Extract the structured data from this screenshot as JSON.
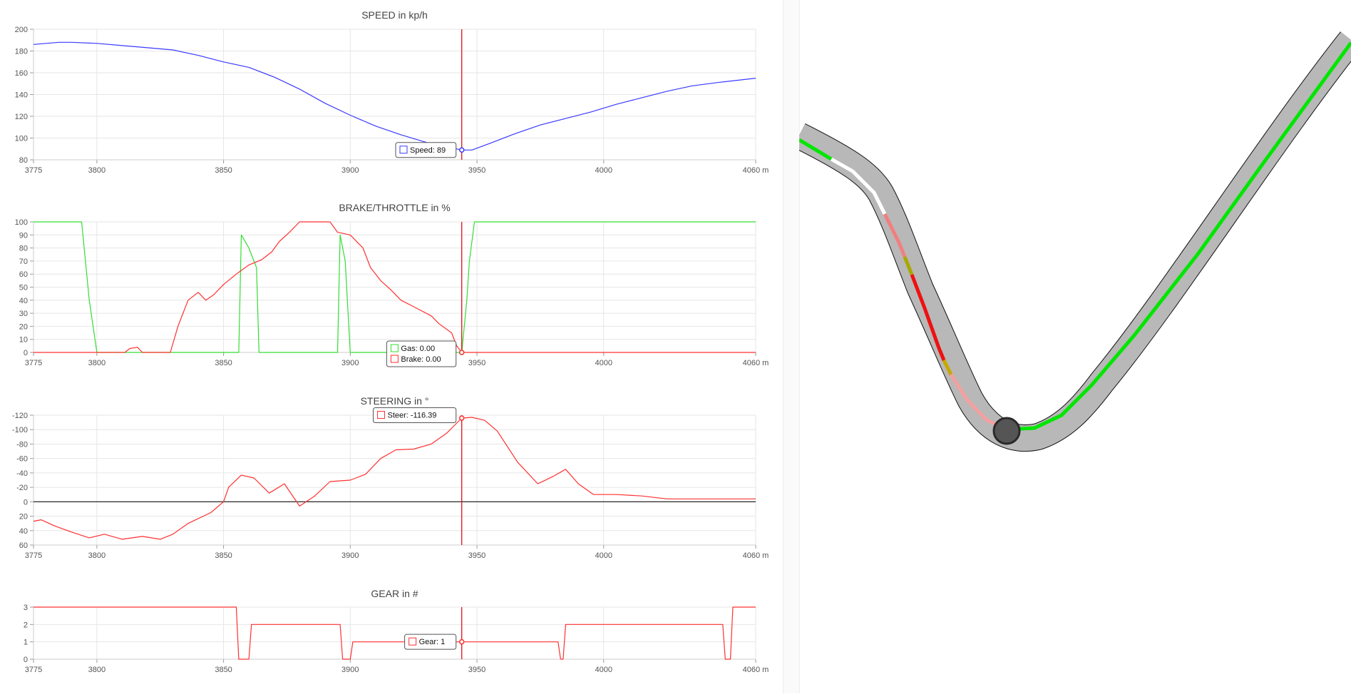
{
  "colors": {
    "speed": "#3a3aff",
    "gas": "#33dd33",
    "brake": "#ff3030",
    "cursor": "#dd0000",
    "track": "#b8b8b8",
    "line_fast": "#00e600",
    "line_brake": "#ee1111"
  },
  "cursor_x": 3944,
  "charts": [
    {
      "title": "SPEED in kp/h",
      "type": "line",
      "x_range": [
        3775,
        4060
      ],
      "x_ticks": [
        "3775",
        "3800",
        "3850",
        "3900",
        "3950",
        "4000",
        "4060 m"
      ],
      "y_range": [
        80,
        200
      ],
      "y_reversed": false,
      "y_ticks": [
        "200",
        "180",
        "160",
        "140",
        "120",
        "100",
        "80"
      ],
      "zero_line": false,
      "series": [
        {
          "name": "Speed",
          "color": "#3a3aff",
          "step": false,
          "x": [
            3775,
            3785,
            3790,
            3800,
            3810,
            3820,
            3830,
            3840,
            3850,
            3860,
            3870,
            3880,
            3890,
            3900,
            3910,
            3920,
            3930,
            3940,
            3944,
            3948,
            3955,
            3965,
            3975,
            3985,
            3995,
            4005,
            4015,
            4025,
            4035,
            4045,
            4060
          ],
          "y": [
            186,
            188,
            188,
            187,
            185,
            183,
            181,
            176,
            170,
            165,
            156,
            145,
            132,
            121,
            111,
            103,
            96,
            91,
            89,
            89,
            95,
            104,
            112,
            118,
            124,
            131,
            137,
            143,
            148,
            151,
            155
          ]
        }
      ],
      "tooltip": [
        {
          "label": "Speed: 89",
          "color": "#3a3aff"
        }
      ]
    },
    {
      "title": "BRAKE/THROTTLE in %",
      "type": "line",
      "x_range": [
        3775,
        4060
      ],
      "x_ticks": [
        "3775",
        "3800",
        "3850",
        "3900",
        "3950",
        "4000",
        "4060 m"
      ],
      "y_range": [
        0,
        100
      ],
      "y_reversed": false,
      "y_ticks": [
        "100",
        "90",
        "80",
        "70",
        "60",
        "50",
        "40",
        "30",
        "20",
        "10",
        "0"
      ],
      "zero_line": false,
      "series": [
        {
          "name": "Gas",
          "color": "#33dd33",
          "step": false,
          "x": [
            3775,
            3794,
            3797,
            3800,
            3856,
            3857,
            3860,
            3863,
            3864,
            3895,
            3896,
            3898,
            3900,
            3901,
            3943,
            3944,
            3946,
            3947,
            3949,
            4060
          ],
          "y": [
            100,
            100,
            40,
            0,
            0,
            90,
            80,
            65,
            0,
            0,
            90,
            70,
            0,
            0,
            0,
            0,
            40,
            70,
            100,
            100
          ]
        },
        {
          "name": "Brake",
          "color": "#ff3030",
          "step": false,
          "x": [
            3775,
            3811,
            3813,
            3816,
            3818,
            3829,
            3832,
            3836,
            3840,
            3843,
            3846,
            3850,
            3855,
            3860,
            3865,
            3869,
            3872,
            3876,
            3880,
            3885,
            3892,
            3895,
            3900,
            3905,
            3908,
            3912,
            3916,
            3920,
            3925,
            3932,
            3935,
            3940,
            3942,
            3944,
            4060
          ],
          "y": [
            0,
            0,
            3,
            4,
            0,
            0,
            20,
            40,
            46,
            40,
            44,
            52,
            60,
            67,
            71,
            77,
            85,
            92,
            100,
            100,
            100,
            92,
            90,
            80,
            65,
            55,
            48,
            40,
            35,
            28,
            22,
            15,
            5,
            0,
            0
          ]
        }
      ],
      "tooltip": [
        {
          "label": "Gas: 0.00",
          "color": "#33dd33"
        },
        {
          "label": "Brake: 0.00",
          "color": "#ff3030"
        }
      ]
    },
    {
      "title": "STEERING in °",
      "type": "line",
      "x_range": [
        3775,
        4060
      ],
      "x_ticks": [
        "3775",
        "3800",
        "3850",
        "3900",
        "3950",
        "4000",
        "4060 m"
      ],
      "y_range": [
        -120,
        60
      ],
      "y_reversed": true,
      "y_ticks": [
        "-120",
        "-100",
        "-80",
        "-60",
        "-40",
        "-20",
        "0",
        "20",
        "40",
        "60"
      ],
      "zero_line": true,
      "series": [
        {
          "name": "Steer",
          "color": "#ff3030",
          "step": false,
          "x": [
            3775,
            3778,
            3783,
            3790,
            3797,
            3803,
            3810,
            3818,
            3825,
            3830,
            3836,
            3845,
            3850,
            3852,
            3857,
            3862,
            3868,
            3874,
            3880,
            3886,
            3892,
            3900,
            3906,
            3912,
            3918,
            3925,
            3932,
            3938,
            3944,
            3948,
            3953,
            3958,
            3966,
            3974,
            3980,
            3985,
            3990,
            3996,
            4005,
            4015,
            4025,
            4040,
            4060
          ],
          "y": [
            27,
            25,
            33,
            42,
            50,
            45,
            52,
            48,
            52,
            45,
            30,
            15,
            0,
            -20,
            -37,
            -33,
            -12,
            -25,
            6,
            -8,
            -28,
            -30,
            -38,
            -60,
            -72,
            -73,
            -80,
            -95,
            -116,
            -117,
            -113,
            -98,
            -55,
            -25,
            -35,
            -45,
            -25,
            -10,
            -10,
            -8,
            -4,
            -4,
            -4
          ]
        }
      ],
      "tooltip": [
        {
          "label": "Steer: -116.39",
          "color": "#ff3030"
        }
      ]
    },
    {
      "title": "GEAR in #",
      "type": "line",
      "x_range": [
        3775,
        4060
      ],
      "x_ticks": [
        "3775",
        "3800",
        "3850",
        "3900",
        "3950",
        "4000",
        "4060 m"
      ],
      "y_range": [
        0,
        3
      ],
      "y_reversed": false,
      "y_ticks": [
        "3",
        "2",
        "1",
        "0"
      ],
      "zero_line": false,
      "series": [
        {
          "name": "Gear",
          "color": "#ff3030",
          "step": false,
          "x": [
            3775,
            3855,
            3856,
            3860,
            3861,
            3896,
            3897,
            3900,
            3901,
            3982,
            3983,
            3984,
            3985,
            4047,
            4048,
            4050,
            4051,
            4060
          ],
          "y": [
            3,
            3,
            0,
            0,
            2,
            2,
            0,
            0,
            1,
            1,
            0,
            0,
            2,
            2,
            0,
            0,
            3,
            3
          ]
        }
      ],
      "tooltip": [
        {
          "label": "Gear: 1",
          "color": "#ff3030"
        }
      ]
    }
  ]
}
